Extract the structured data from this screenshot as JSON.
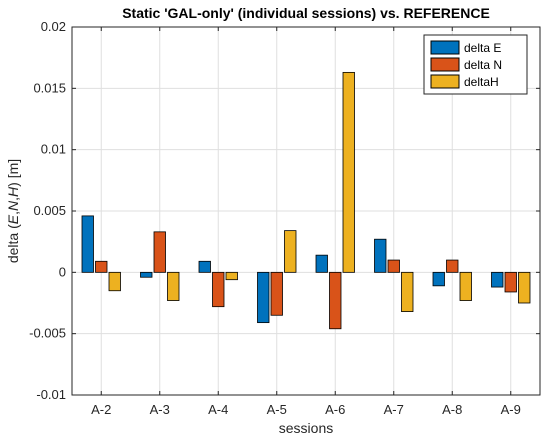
{
  "chart_data": {
    "type": "bar",
    "title": "Static 'GAL-only' (individual sessions) vs. REFERENCE",
    "xlabel": "sessions",
    "ylabel_prefix": "delta (",
    "ylabel_E": "E",
    "ylabel_sep1": ",",
    "ylabel_N": "N",
    "ylabel_sep2": ",",
    "ylabel_H": "H",
    "ylabel_suffix": ") [m]",
    "categories": [
      "A-2",
      "A-3",
      "A-4",
      "A-5",
      "A-6",
      "A-7",
      "A-8",
      "A-9"
    ],
    "series": [
      {
        "name": "delta E",
        "color": "#0072BD",
        "values": [
          0.0046,
          -0.0004,
          0.0009,
          -0.0041,
          0.0014,
          0.0027,
          -0.0011,
          -0.0012
        ]
      },
      {
        "name": "delta N",
        "color": "#D95319",
        "values": [
          0.0009,
          0.0033,
          -0.0028,
          -0.0035,
          -0.0046,
          0.001,
          0.001,
          -0.0016
        ]
      },
      {
        "name": "deltaH",
        "color": "#EDB120",
        "values": [
          -0.0015,
          -0.0023,
          -0.0006,
          0.0034,
          0.0163,
          -0.0032,
          -0.0023,
          -0.0025
        ]
      }
    ],
    "ylim": [
      -0.01,
      0.02
    ],
    "yticks": [
      "-0.01",
      "-0.005",
      "0",
      "0.005",
      "0.01",
      "0.015",
      "0.02"
    ],
    "grid": true,
    "legend_position": "top-right"
  }
}
